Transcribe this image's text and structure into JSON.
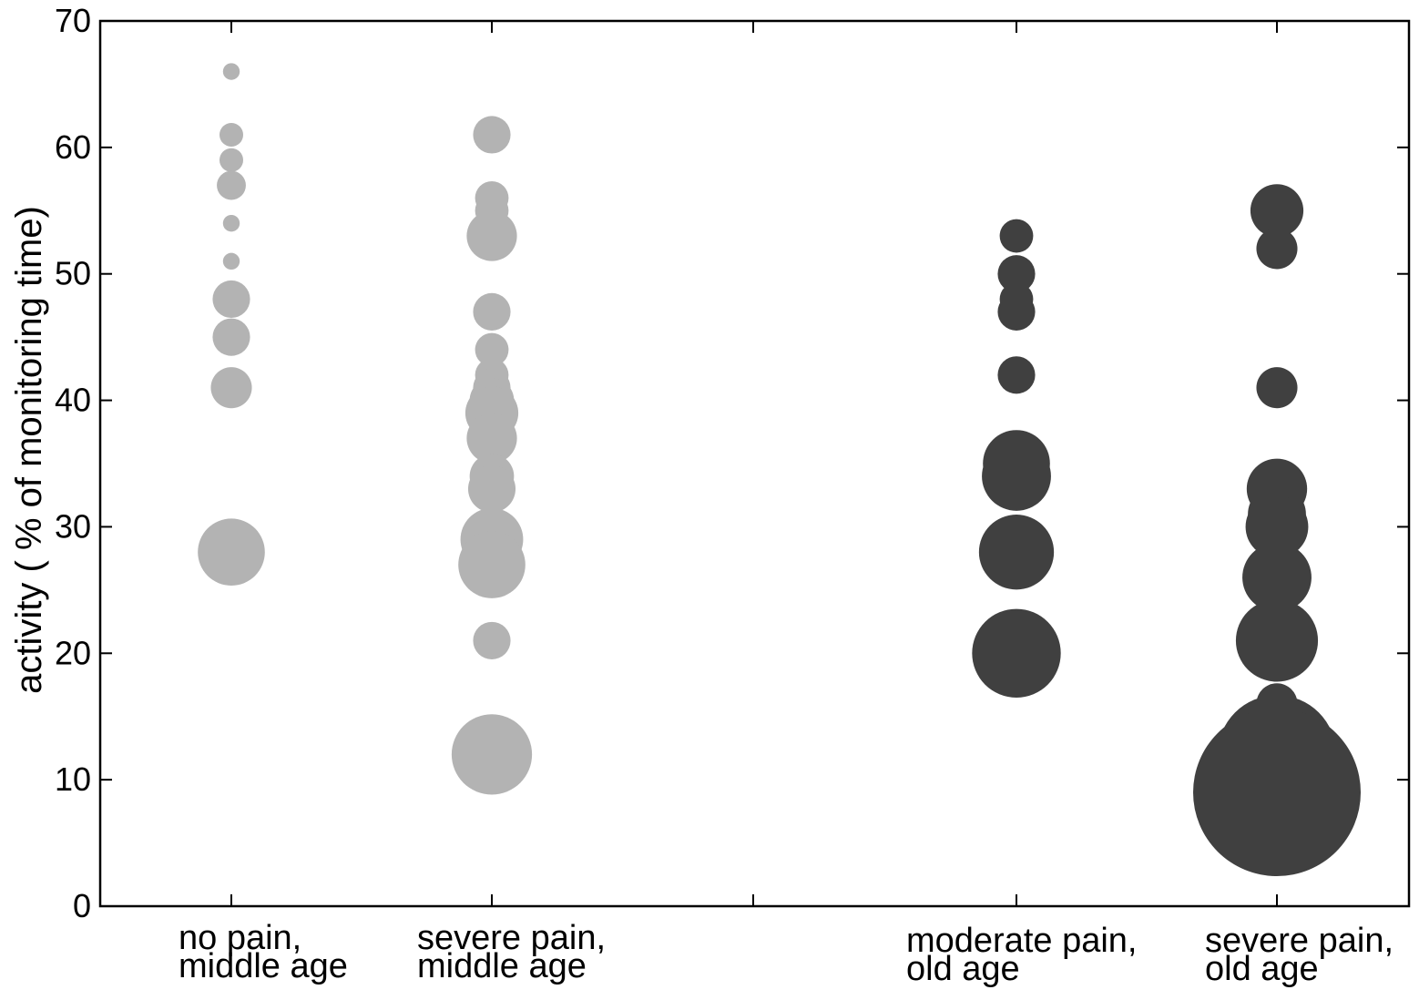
{
  "chart_data": {
    "type": "scatter",
    "ylabel": "activity  ( % of monitoring time)",
    "xlabel": "",
    "ylim": [
      0,
      70
    ],
    "yticks": [
      0,
      10,
      20,
      30,
      40,
      50,
      60,
      70
    ],
    "grid": false,
    "colors": {
      "middle_age": "#b3b3b3",
      "old_age": "#404040",
      "axis": "#000000"
    },
    "categories": [
      {
        "lines": [
          "no pain,",
          "middle age"
        ],
        "group": "middle_age"
      },
      {
        "lines": [
          "severe pain,",
          "middle age"
        ],
        "group": "middle_age"
      },
      {
        "lines": [
          "moderate pain,",
          "old age"
        ],
        "group": "old_age"
      },
      {
        "lines": [
          "severe pain,",
          "old age"
        ],
        "group": "old_age"
      }
    ],
    "series": [
      {
        "category": 0,
        "points": [
          {
            "y": 66,
            "size": 1
          },
          {
            "y": 61,
            "size": 2
          },
          {
            "y": 59,
            "size": 2
          },
          {
            "y": 57,
            "size": 3
          },
          {
            "y": 54,
            "size": 1
          },
          {
            "y": 51,
            "size": 1
          },
          {
            "y": 48,
            "size": 5
          },
          {
            "y": 45,
            "size": 5
          },
          {
            "y": 41,
            "size": 6
          },
          {
            "y": 28,
            "size": 16
          }
        ]
      },
      {
        "category": 1,
        "points": [
          {
            "y": 61,
            "size": 5
          },
          {
            "y": 56,
            "size": 4
          },
          {
            "y": 55,
            "size": 4
          },
          {
            "y": 53,
            "size": 9
          },
          {
            "y": 47,
            "size": 5
          },
          {
            "y": 44,
            "size": 4
          },
          {
            "y": 42,
            "size": 4
          },
          {
            "y": 41,
            "size": 5
          },
          {
            "y": 40,
            "size": 7
          },
          {
            "y": 39,
            "size": 10
          },
          {
            "y": 37,
            "size": 9
          },
          {
            "y": 34,
            "size": 7
          },
          {
            "y": 33,
            "size": 8
          },
          {
            "y": 29,
            "size": 14
          },
          {
            "y": 27,
            "size": 16
          },
          {
            "y": 21,
            "size": 5
          },
          {
            "y": 12,
            "size": 23
          }
        ]
      },
      {
        "category": 2,
        "points": [
          {
            "y": 53,
            "size": 4
          },
          {
            "y": 50,
            "size": 5
          },
          {
            "y": 48,
            "size": 4
          },
          {
            "y": 47,
            "size": 5
          },
          {
            "y": 42,
            "size": 5
          },
          {
            "y": 35,
            "size": 16
          },
          {
            "y": 34,
            "size": 17
          },
          {
            "y": 28,
            "size": 20
          },
          {
            "y": 20,
            "size": 28
          }
        ]
      },
      {
        "category": 3,
        "points": [
          {
            "y": 55,
            "size": 10
          },
          {
            "y": 52,
            "size": 6
          },
          {
            "y": 41,
            "size": 6
          },
          {
            "y": 33,
            "size": 13
          },
          {
            "y": 31,
            "size": 12
          },
          {
            "y": 30,
            "size": 14
          },
          {
            "y": 26,
            "size": 17
          },
          {
            "y": 21,
            "size": 24
          },
          {
            "y": 16,
            "size": 6
          },
          {
            "y": 12,
            "size": 50
          },
          {
            "y": 9,
            "size": 100
          }
        ]
      }
    ]
  }
}
